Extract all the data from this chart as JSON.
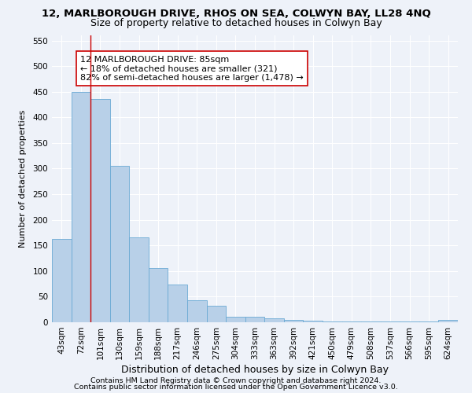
{
  "title": "12, MARLBOROUGH DRIVE, RHOS ON SEA, COLWYN BAY, LL28 4NQ",
  "subtitle": "Size of property relative to detached houses in Colwyn Bay",
  "xlabel": "Distribution of detached houses by size in Colwyn Bay",
  "ylabel": "Number of detached properties",
  "categories": [
    "43sqm",
    "72sqm",
    "101sqm",
    "130sqm",
    "159sqm",
    "188sqm",
    "217sqm",
    "246sqm",
    "275sqm",
    "304sqm",
    "333sqm",
    "363sqm",
    "392sqm",
    "421sqm",
    "450sqm",
    "479sqm",
    "508sqm",
    "537sqm",
    "566sqm",
    "595sqm",
    "624sqm"
  ],
  "values": [
    162,
    450,
    435,
    305,
    165,
    106,
    73,
    43,
    32,
    10,
    10,
    8,
    5,
    3,
    2,
    2,
    2,
    2,
    2,
    2,
    5
  ],
  "bar_color": "#b8d0e8",
  "bar_edge_color": "#6aaad4",
  "vline_x": 1.5,
  "vline_color": "#cc0000",
  "annotation_text": "12 MARLBOROUGH DRIVE: 85sqm\n← 18% of detached houses are smaller (321)\n82% of semi-detached houses are larger (1,478) →",
  "annotation_box_color": "#ffffff",
  "annotation_box_edge": "#cc0000",
  "ylim": [
    0,
    560
  ],
  "yticks": [
    0,
    50,
    100,
    150,
    200,
    250,
    300,
    350,
    400,
    450,
    500,
    550
  ],
  "footer1": "Contains HM Land Registry data © Crown copyright and database right 2024.",
  "footer2": "Contains public sector information licensed under the Open Government Licence v3.0.",
  "bg_color": "#eef2f9",
  "grid_color": "#ffffff",
  "title_fontsize": 9.5,
  "subtitle_fontsize": 9,
  "xlabel_fontsize": 9,
  "ylabel_fontsize": 8,
  "tick_fontsize": 7.5,
  "annotation_fontsize": 8,
  "footer_fontsize": 6.8
}
